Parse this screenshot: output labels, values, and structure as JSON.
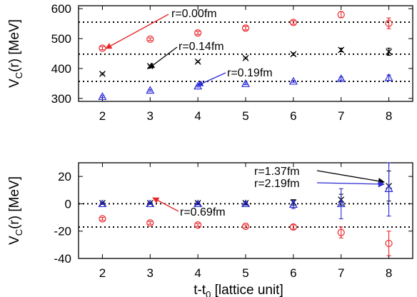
{
  "chart_data": [
    {
      "type": "scatter",
      "panel": "top",
      "ylabel_main": "V",
      "ylabel_sub": "C",
      "ylabel_rest": "(r) [MeV]",
      "xlim": [
        1.5,
        8.5
      ],
      "ylim": [
        290,
        610
      ],
      "xticks": [
        "2",
        "3",
        "4",
        "5",
        "6",
        "7",
        "8"
      ],
      "yticks": [
        "300",
        "400",
        "500",
        "600"
      ],
      "grid": false,
      "reference_lines": [
        555,
        448,
        357
      ],
      "series": [
        {
          "marker": "circle",
          "color": "#e8262a",
          "x": [
            2,
            3,
            4,
            5,
            6,
            7,
            8
          ],
          "y": [
            468,
            498,
            519,
            535,
            554,
            580,
            551
          ],
          "yerr": [
            5,
            4,
            5,
            6,
            6,
            10,
            18
          ]
        },
        {
          "marker": "cross",
          "color": "#000000",
          "x": [
            2,
            3,
            4,
            5,
            6,
            7,
            8
          ],
          "y": [
            382,
            408,
            423,
            435,
            448,
            462,
            456
          ],
          "yerr": [
            3,
            3,
            3,
            3,
            4,
            6,
            12
          ]
        },
        {
          "marker": "triangle",
          "color": "#2a2ad6",
          "x": [
            2,
            3,
            4,
            5,
            6,
            7,
            8
          ],
          "y": [
            306,
            327,
            341,
            349,
            357,
            366,
            369
          ],
          "yerr": [
            3,
            3,
            3,
            3,
            3,
            5,
            9
          ]
        }
      ],
      "annotations": [
        {
          "text": "r=0.00fm",
          "color": "#e8262a"
        },
        {
          "text": "r=0.14fm",
          "color": "#000000"
        },
        {
          "text": "r=0.19fm",
          "color": "#2a2ad6"
        }
      ]
    },
    {
      "type": "scatter",
      "panel": "bottom",
      "ylabel_main": "V",
      "ylabel_sub": "C",
      "ylabel_rest": "(r) [MeV]",
      "xlabel_main": "t-t",
      "xlabel_sub": "0",
      "xlabel_rest": " [lattice unit]",
      "xlim": [
        1.5,
        8.5
      ],
      "ylim": [
        -40,
        30
      ],
      "xticks": [
        "2",
        "3",
        "4",
        "5",
        "6",
        "7",
        "8"
      ],
      "yticks": [
        "20",
        "0",
        "-20",
        "-40"
      ],
      "grid": false,
      "reference_lines": [
        0,
        -17
      ],
      "series": [
        {
          "marker": "circle",
          "color": "#e8262a",
          "x": [
            2,
            3,
            4,
            5,
            6,
            7,
            8
          ],
          "y": [
            -11,
            -14,
            -15.5,
            -16.5,
            -17,
            -21,
            -29
          ],
          "yerr": [
            1,
            1,
            1,
            1,
            1.5,
            4,
            9
          ]
        },
        {
          "marker": "cross",
          "color": "#000000",
          "x": [
            2,
            3,
            4,
            5,
            6,
            7,
            8
          ],
          "y": [
            0.5,
            0.5,
            0.5,
            0.5,
            1,
            3,
            13
          ],
          "yerr": [
            0.5,
            0.5,
            0.8,
            1,
            2,
            4,
            11
          ]
        },
        {
          "marker": "triangle",
          "color": "#2a2ad6",
          "x": [
            2,
            3,
            4,
            5,
            6,
            7,
            8
          ],
          "y": [
            0,
            0,
            0,
            0,
            -0.5,
            0,
            11
          ],
          "yerr": [
            0.5,
            0.5,
            0.8,
            1,
            3,
            11,
            20
          ]
        }
      ],
      "annotations": [
        {
          "text": "r=1.37fm",
          "color": "#000000"
        },
        {
          "text": "r=2.19fm",
          "color": "#2a2ad6"
        },
        {
          "text": "r=0.69fm",
          "color": "#e8262a"
        }
      ]
    }
  ]
}
